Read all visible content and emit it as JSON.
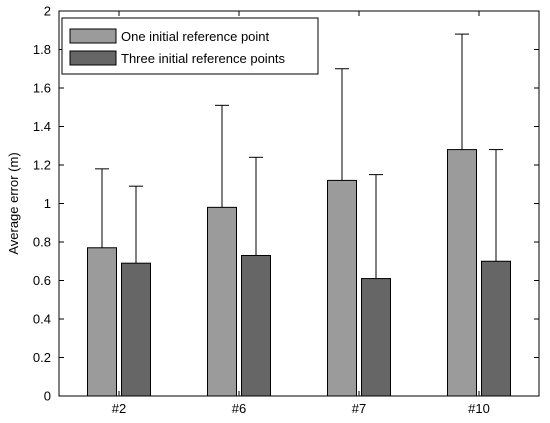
{
  "chart_data": {
    "type": "bar",
    "categories": [
      "#2",
      "#6",
      "#7",
      "#10"
    ],
    "series": [
      {
        "name": "One initial reference point",
        "color": "#9b9b9b",
        "values": [
          0.77,
          0.98,
          1.12,
          1.28
        ],
        "error_upper": [
          1.18,
          1.51,
          1.7,
          1.88
        ]
      },
      {
        "name": "Three initial reference points",
        "color": "#666666",
        "values": [
          0.69,
          0.73,
          0.61,
          0.7
        ],
        "error_upper": [
          1.09,
          1.24,
          1.15,
          1.28
        ]
      }
    ],
    "ylabel": "Average error (m)",
    "xlabel": "",
    "ylim": [
      0,
      2
    ],
    "yticks": [
      "0",
      "0.2",
      "0.4",
      "0.6",
      "0.8",
      "1",
      "1.2",
      "1.4",
      "1.6",
      "1.8",
      "2"
    ],
    "grid": false,
    "legend_position": "top-left"
  }
}
